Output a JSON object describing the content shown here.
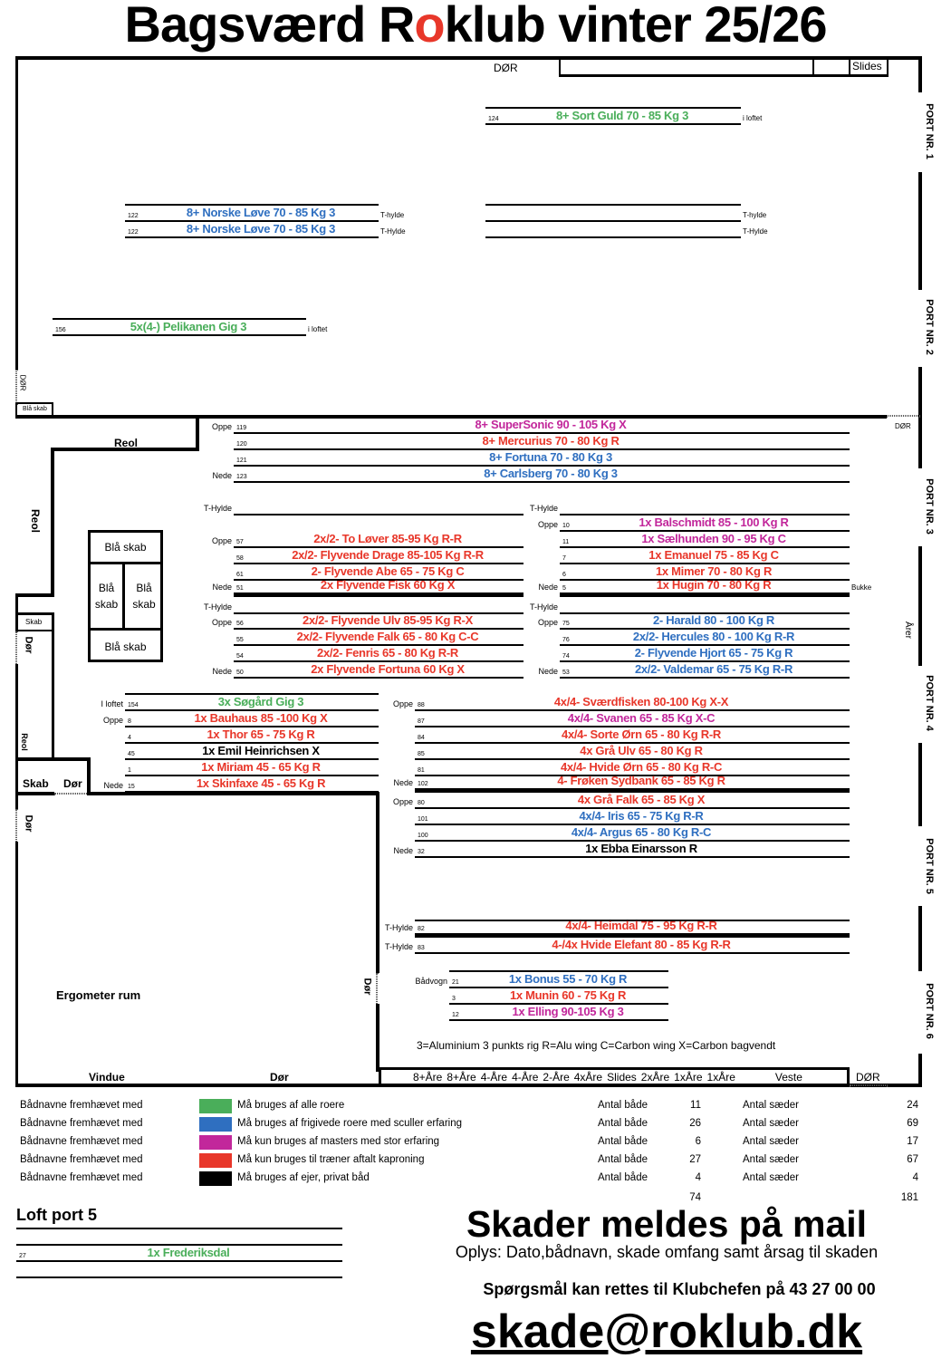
{
  "title": {
    "before": "Bagsværd R",
    "accent": "o",
    "after": "klub vinter 25/26",
    "accent_color": "#e8372a"
  },
  "colors": {
    "green": "#4aae5a",
    "blue": "#2f6fc0",
    "magenta": "#c2279b",
    "red": "#e8372a",
    "black": "#000000"
  },
  "plan": {
    "top_door": "DØR",
    "slides": "Slides",
    "left_door_top": "DØR",
    "blaa_skab_small": "Blå skab",
    "right_door": "DØR",
    "reol_top": "Reol",
    "reol_side": "Reol",
    "reol_low": "Reol",
    "skab_small": "Skab",
    "door_left_1": "Dør",
    "skab_label": "Skab",
    "door_label": "Dør",
    "door_left_2": "Dør",
    "door_ergo": "Dør",
    "ergometer": "Ergometer rum",
    "vindue": "Vindue",
    "bottom_door": "Dør",
    "bottom_right_door": "DØR",
    "aarer": "Årer",
    "cabinets": [
      "Blå skab",
      "Blå skab",
      "Blå skab",
      "Blå skab"
    ],
    "ports": [
      "PORT NR. 1",
      "PORT NR. 2",
      "PORT NR. 3",
      "PORT NR. 4",
      "PORT NR. 5",
      "PORT NR. 6"
    ],
    "rack_labels": [
      "8+Åre",
      "8+Åre",
      "4-Åre",
      "4-Åre",
      "2-Åre",
      "4xÅre",
      "Slides",
      "2xÅre",
      "1xÅre",
      "1xÅre",
      "Veste"
    ],
    "rig_legend": "3=Aluminium 3 punkts rig  R=Alu wing C=Carbon wing  X=Carbon bagvendt"
  },
  "shelves": {
    "sortguld": {
      "rows": [
        {
          "num": "124",
          "name": "8+ Sort Guld 70 - 85 Kg 3",
          "color": "green",
          "side": "i loftet"
        }
      ]
    },
    "norske": {
      "rows": [
        {
          "num": "122",
          "name": "8+ Norske Løve 70 - 85 Kg 3",
          "color": "blue",
          "side": "T-hylde"
        },
        {
          "num": "122",
          "name": "8+ Norske Løve 70 - 85 Kg 3",
          "color": "blue",
          "side": "T-Hylde"
        }
      ]
    },
    "emptypair": {
      "rows": [
        {
          "side": "T-hylde"
        },
        {
          "side": "T-Hylde"
        }
      ]
    },
    "pelikan": {
      "rows": [
        {
          "num": "156",
          "name": "5x(4-) Pelikanen  Gig 3",
          "color": "green",
          "side": "i loftet"
        }
      ]
    },
    "eight": {
      "rows": [
        {
          "pos": "Oppe",
          "num": "119",
          "name": "8+ SuperSonic 90 - 105 Kg X",
          "color": "magenta"
        },
        {
          "num": "120",
          "name": "8+ Mercurius 70 - 80 Kg R",
          "color": "red"
        },
        {
          "num": "121",
          "name": "8+ Fortuna 70 - 80 Kg 3",
          "color": "blue"
        },
        {
          "pos": "Nede",
          "num": "123",
          "name": "8+ Carlsberg 70 - 80 Kg 3",
          "color": "blue"
        }
      ]
    },
    "thyldeL1": {
      "rows": [
        {
          "pos": "T-Hylde"
        }
      ]
    },
    "thyldeR1": {
      "rows": [
        {
          "pos": "T-Hylde"
        }
      ]
    },
    "midL": {
      "rows": [
        {
          "pos": "Oppe",
          "num": "57",
          "name": "2x/2- To Løver 85-95 Kg R-R",
          "color": "red"
        },
        {
          "num": "58",
          "name": "2x/2- Flyvende Drage 85-105 Kg R-R",
          "color": "red"
        },
        {
          "num": "61",
          "name": "2- Flyvende Abe 65 - 75 Kg C",
          "color": "red"
        },
        {
          "pos": "Nede",
          "num": "51",
          "name": "2x Flyvende Fisk 60 Kg X",
          "color": "red"
        }
      ]
    },
    "midR": {
      "rows": [
        {
          "pos": "Oppe",
          "num": "10",
          "name": "1x Balschmidt 85 - 100 Kg R",
          "color": "magenta"
        },
        {
          "num": "11",
          "name": "1x Sælhunden 90 - 95 Kg C",
          "color": "magenta"
        },
        {
          "num": "7",
          "name": "1x Emanuel 75 - 85 Kg C",
          "color": "red"
        },
        {
          "num": "6",
          "name": "1x Mimer 70 - 80 Kg R",
          "color": "red"
        },
        {
          "pos": "Nede",
          "num": "5",
          "name": "1x Hugin 70 - 80 Kg R",
          "color": "red",
          "side": "Bukke"
        }
      ]
    },
    "thyldeL2": {
      "rows": [
        {
          "pos": "T-Hylde"
        }
      ]
    },
    "thyldeR2": {
      "rows": [
        {
          "pos": "T-Hylde"
        }
      ]
    },
    "lowL": {
      "rows": [
        {
          "pos": "Oppe",
          "num": "56",
          "name": "2x/2- Flyvende Ulv 85-95 Kg R-X",
          "color": "red"
        },
        {
          "num": "55",
          "name": "2x/2- Flyvende Falk 65 - 80 Kg C-C",
          "color": "red"
        },
        {
          "num": "54",
          "name": "2x/2- Fenris 65 - 80 Kg R-R",
          "color": "red"
        },
        {
          "pos": "Nede",
          "num": "50",
          "name": "2x Flyvende Fortuna 60 Kg X",
          "color": "red"
        }
      ]
    },
    "lowR": {
      "rows": [
        {
          "pos": "Oppe",
          "num": "75",
          "name": "2- Harald 80 - 100 Kg R",
          "color": "blue"
        },
        {
          "num": "76",
          "name": "2x/2- Hercules 80 - 100 Kg R-R",
          "color": "blue"
        },
        {
          "num": "74",
          "name": "2- Flyvende Hjort 65 - 75 Kg R",
          "color": "blue"
        },
        {
          "pos": "Nede",
          "num": "53",
          "name": "2x/2- Valdemar 65 - 75 Kg R-R",
          "color": "blue"
        }
      ]
    },
    "singles": {
      "rows": [
        {
          "pos": "I loftet",
          "num": "154",
          "name": "3x Søgård  Gig 3",
          "color": "green"
        },
        {
          "pos": "Oppe",
          "num": "8",
          "name": "1x Bauhaus 85 -100 Kg X",
          "color": "red"
        },
        {
          "num": "4",
          "name": "1x Thor 65 - 75 Kg R",
          "color": "red"
        },
        {
          "num": "45",
          "name": "1x Emil Heinrichsen  X",
          "color": "black"
        },
        {
          "num": "1",
          "name": "1x Miriam 45 - 65 Kg R",
          "color": "red"
        },
        {
          "pos": "Nede",
          "num": "15",
          "name": "1x Skinfaxe 45 - 65 Kg R",
          "color": "red"
        }
      ]
    },
    "fours": {
      "rows": [
        {
          "pos": "Oppe",
          "num": "88",
          "name": "4x/4- Sværdfisken 80-100 Kg X-X",
          "color": "red"
        },
        {
          "num": "87",
          "name": "4x/4- Svanen 65 - 85 Kg X-C",
          "color": "magenta"
        },
        {
          "num": "84",
          "name": "4x/4- Sorte Ørn 65 - 80 Kg R-R",
          "color": "red"
        },
        {
          "num": "85",
          "name": "4x Grå Ulv 65 - 80 Kg R",
          "color": "red"
        },
        {
          "num": "81",
          "name": "4x/4- Hvide Ørn 65 - 80 Kg R-C",
          "color": "red"
        },
        {
          "pos": "Nede",
          "num": "102",
          "name": "4- Frøken Sydbank 65 - 85 Kg R",
          "color": "red"
        },
        {
          "pos": "Oppe",
          "num": "80",
          "name": "4x Grå Falk 65 - 85 Kg X",
          "color": "red"
        },
        {
          "num": "101",
          "name": "4x/4- Iris 65 - 75 Kg R-R",
          "color": "blue"
        },
        {
          "num": "100",
          "name": "4x/4- Argus 65 - 80 Kg R-C",
          "color": "blue"
        },
        {
          "pos": "Nede",
          "num": "32",
          "name": "1x Ebba Einarsson  R",
          "color": "black"
        }
      ]
    },
    "thylde4": {
      "rows": [
        {
          "pos": "T-Hylde",
          "num": "82",
          "name": "4x/4- Heimdal 75 - 95 Kg R-R",
          "color": "red"
        },
        {
          "pos": "T-Hylde",
          "num": "83",
          "name": "4-/4x Hvide Elefant 80 - 85 Kg R-R",
          "color": "red"
        }
      ]
    },
    "vogn": {
      "rows": [
        {
          "pos": "Bådvogn",
          "num": "21",
          "name": "1x Bonus 55 - 70 Kg R",
          "color": "blue"
        },
        {
          "num": "3",
          "name": "1x Munin 60 - 75 Kg R",
          "color": "red"
        },
        {
          "num": "12",
          "name": "1x Elling 90-105 Kg 3",
          "color": "magenta"
        }
      ]
    },
    "loft": {
      "rows": [
        {},
        {
          "num": "27",
          "name": "1x Frederiksdal",
          "color": "green"
        },
        {}
      ]
    }
  },
  "loft_title": "Loft port 5",
  "legend": [
    {
      "prefix": "Bådnavne fremhævet med",
      "color": "green",
      "desc": "Må bruges af alle roere",
      "boats_label": "Antal både",
      "boats": "11",
      "seats_label": "Antal sæder",
      "seats": "24"
    },
    {
      "prefix": "Bådnavne fremhævet med",
      "color": "blue",
      "desc": "Må bruges af  frigivede roere med sculler erfaring",
      "boats_label": "Antal både",
      "boats": "26",
      "seats_label": "Antal sæder",
      "seats": "69"
    },
    {
      "prefix": "Bådnavne fremhævet med",
      "color": "magenta",
      "desc": "Må kun bruges af masters med stor erfaring",
      "boats_label": "Antal både",
      "boats": "6",
      "seats_label": "Antal sæder",
      "seats": "17"
    },
    {
      "prefix": "Bådnavne fremhævet med",
      "color": "red",
      "desc": "Må kun bruges til træner aftalt kaproning",
      "boats_label": "Antal både",
      "boats": "27",
      "seats_label": "Antal sæder",
      "seats": "67"
    },
    {
      "prefix": "Bådnavne fremhævet med",
      "color": "black",
      "desc": "Må bruges af ejer, privat båd",
      "boats_label": "Antal både",
      "boats": "4",
      "seats_label": "Antal sæder",
      "seats": "4"
    }
  ],
  "totals": {
    "boats": "74",
    "seats": "181"
  },
  "notice": {
    "headline": "Skader meldes på mail",
    "info": "Oplys: Dato,bådnavn, skade omfang samt årsag til skaden",
    "questions": "Spørgsmål kan rettes til Klubchefen på 43 27 00 00",
    "email": "skade@roklub.dk"
  }
}
